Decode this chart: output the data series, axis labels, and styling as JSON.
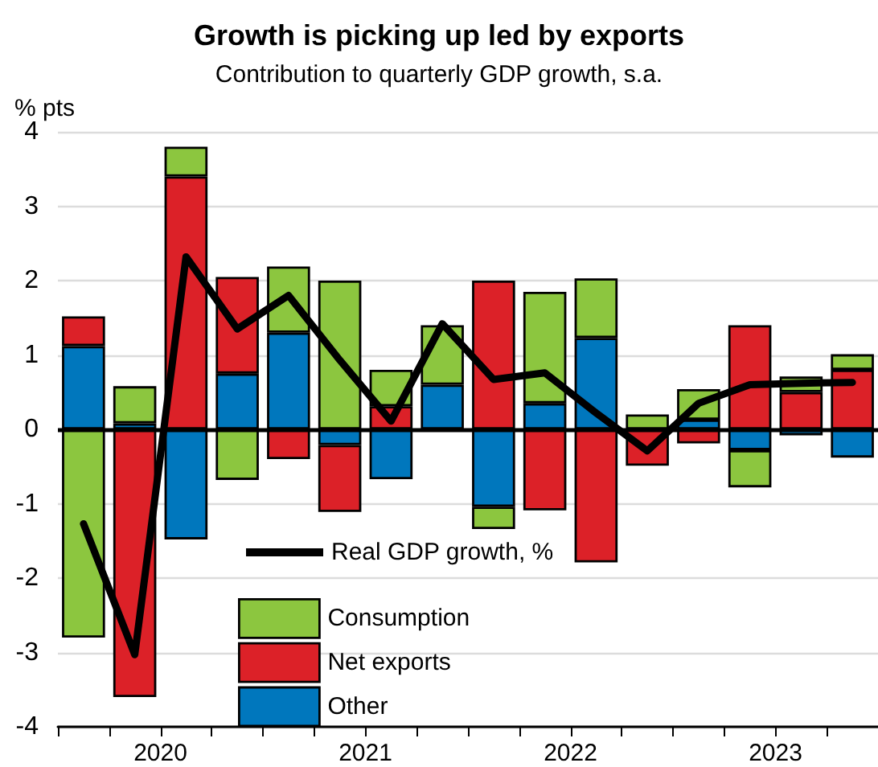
{
  "chart_data": {
    "type": "bar",
    "title": "Growth is picking up led by exports",
    "subtitle": "Contribution to quarterly GDP growth, s.a.",
    "ylabel": "% pts",
    "x": [
      2020.125,
      2020.375,
      2020.625,
      2020.875,
      2021.125,
      2021.375,
      2021.625,
      2021.875,
      2022.125,
      2022.375,
      2022.625,
      2022.875,
      2023.125,
      2023.375,
      2023.625,
      2023.875
    ],
    "xlim": [
      2020,
      2024
    ],
    "xticks": [
      {
        "value": 2020,
        "label": null
      },
      {
        "value": 2020.25,
        "label": null
      },
      {
        "value": 2020.5,
        "label": "2020"
      },
      {
        "value": 2020.75,
        "label": null
      },
      {
        "value": 2021,
        "label": null
      },
      {
        "value": 2021.25,
        "label": null
      },
      {
        "value": 2021.5,
        "label": "2021"
      },
      {
        "value": 2021.75,
        "label": null
      },
      {
        "value": 2022,
        "label": null
      },
      {
        "value": 2022.25,
        "label": null
      },
      {
        "value": 2022.5,
        "label": "2022"
      },
      {
        "value": 2022.75,
        "label": null
      },
      {
        "value": 2023,
        "label": null
      },
      {
        "value": 2023.25,
        "label": null
      },
      {
        "value": 2023.5,
        "label": "2023"
      },
      {
        "value": 2023.75,
        "label": null
      },
      {
        "value": 2024,
        "label": null
      }
    ],
    "stacked": true,
    "series": [
      {
        "name": "Other",
        "color": "#0077bd",
        "values": [
          1.12,
          0.08,
          -1.48,
          0.75,
          1.3,
          -0.21,
          -0.67,
          0.6,
          -1.04,
          0.35,
          1.23,
          null,
          0.13,
          -0.28,
          -0.08,
          -0.38
        ]
      },
      {
        "name": "Net exports",
        "color": "#dc2128",
        "values": [
          0.4,
          -3.6,
          3.4,
          1.3,
          -0.4,
          -0.9,
          0.31,
          null,
          2.0,
          -1.09,
          -1.79,
          -0.49,
          -0.19,
          1.4,
          0.5,
          0.8
        ]
      },
      {
        "name": "Consumption",
        "color": "#8cc63f",
        "values": [
          -2.8,
          0.5,
          0.4,
          -0.68,
          0.89,
          2.0,
          0.49,
          0.8,
          -0.3,
          1.5,
          0.8,
          0.2,
          0.41,
          -0.5,
          0.21,
          0.21
        ]
      },
      {
        "name": "Real GDP growth, %",
        "type": "line",
        "color": "#000000",
        "values": [
          -1.27,
          -3.03,
          2.32,
          1.35,
          1.8,
          0.93,
          0.11,
          1.42,
          0.67,
          0.76,
          0.22,
          -0.29,
          0.35,
          0.6,
          0.62,
          0.63
        ]
      }
    ],
    "ylim": [
      -4,
      4
    ],
    "yticks": [
      -4,
      -3,
      -2,
      -1,
      0,
      1,
      2,
      3,
      4
    ],
    "grid": "y",
    "legend": "bottom left",
    "marker": "none",
    "line_style": "solid",
    "ref_lines": [
      {
        "axis": "y",
        "value": 0,
        "color": "#000000"
      }
    ]
  }
}
